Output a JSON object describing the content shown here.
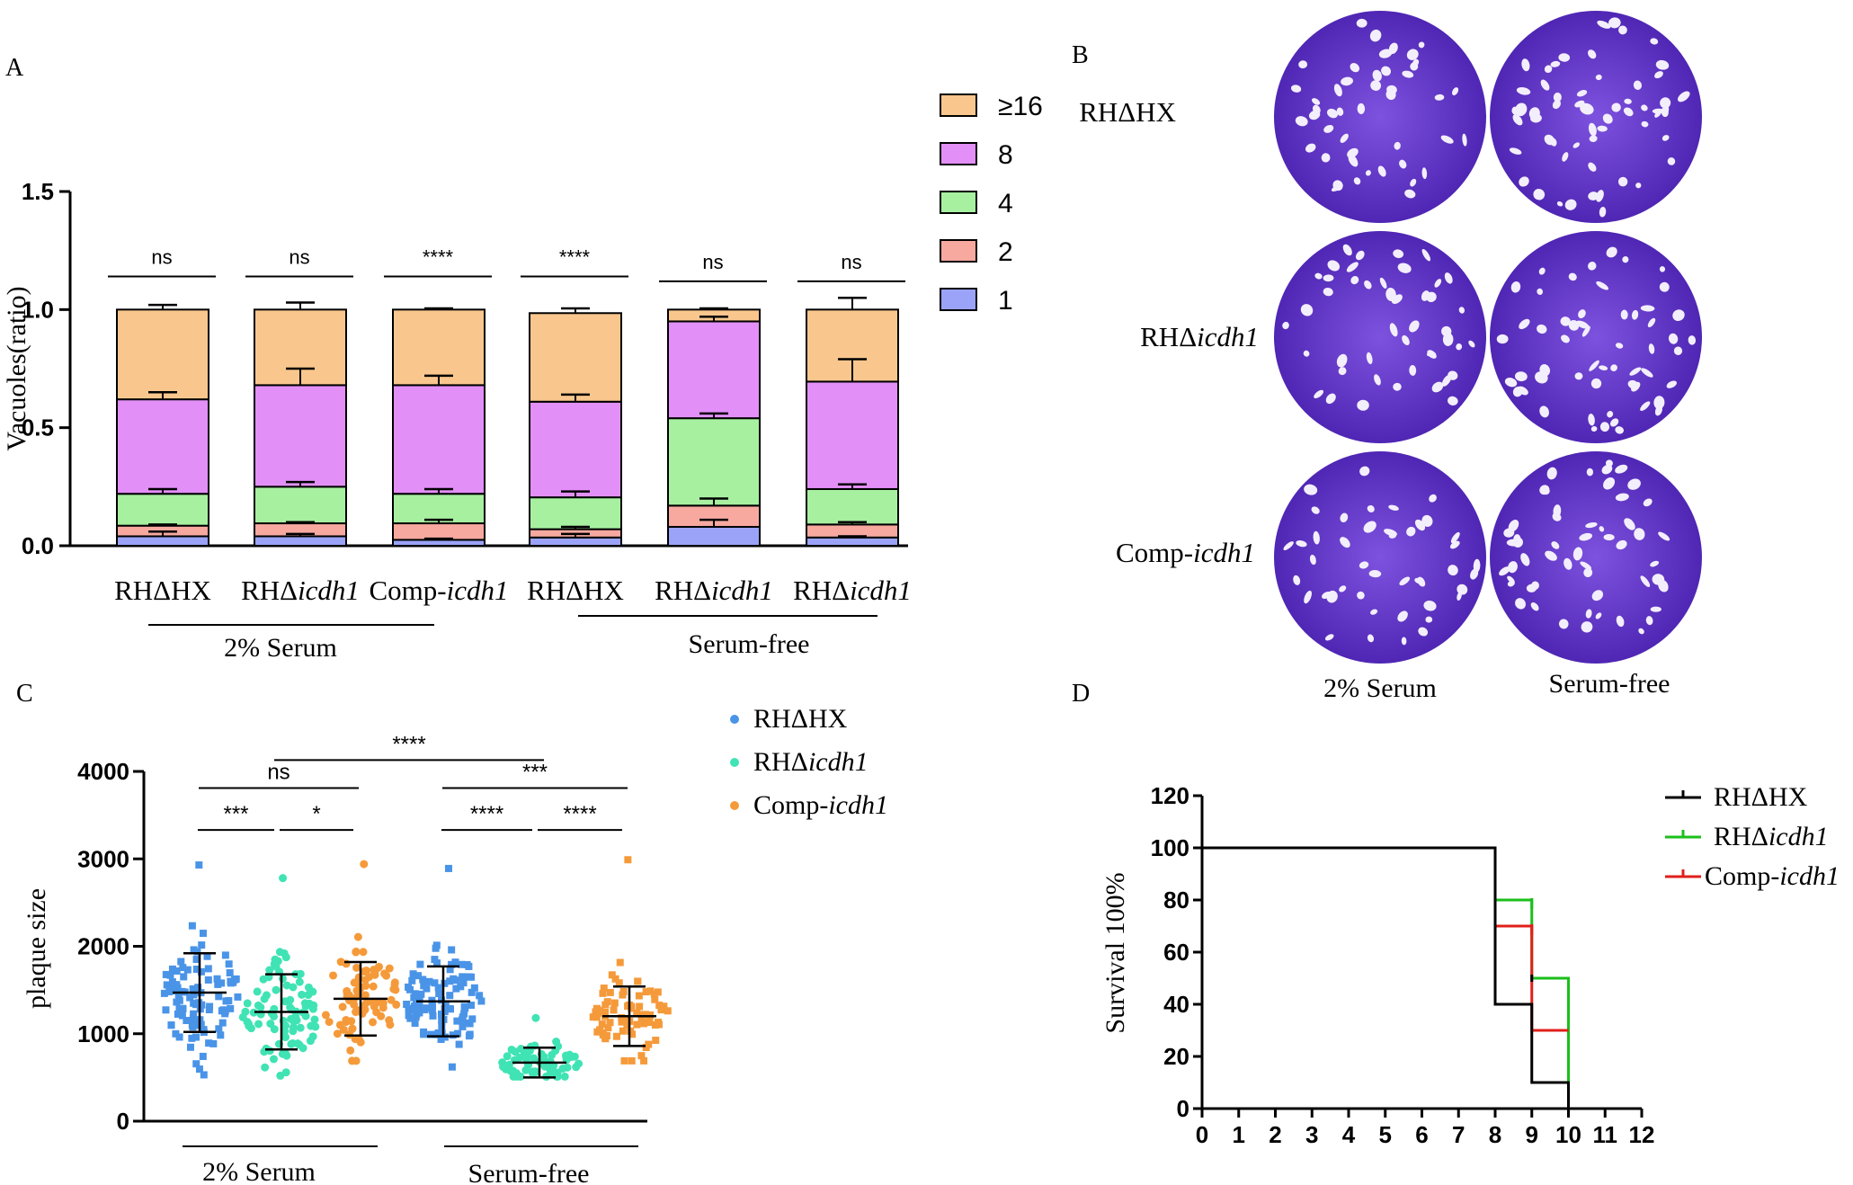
{
  "panel_letters": {
    "a": "A",
    "b": "B",
    "c": "C",
    "d": "D"
  },
  "colors": {
    "v16": "#f9c78e",
    "v8": "#e38ff8",
    "v4": "#a7f0a0",
    "v2": "#f7a9a0",
    "v1": "#9aa3f7",
    "rhhx": "#4a94e8",
    "rhicdh": "#40e3b4",
    "comp": "#f59a3a",
    "surv_hx": "#000000",
    "surv_icdh": "#1bbf1b",
    "surv_comp": "#e0201a",
    "plate": "#6a38d2",
    "plate_dark": "#4b22b0"
  },
  "panelB": {
    "row_labels": [
      {
        "prefix": "RHΔHX",
        "italic": ""
      },
      {
        "prefix": "RHΔ",
        "italic": "icdh1"
      },
      {
        "prefix": "Comp-",
        "italic": "icdh1"
      }
    ],
    "col_labels": [
      "2% Serum",
      "Serum-free"
    ]
  },
  "chart_data": [
    {
      "id": "A",
      "type": "bar",
      "stacked": true,
      "ylabel": "Vacuoles(ratio)",
      "ylim": [
        0,
        1.5
      ],
      "yticks": [
        "0.0",
        "0.5",
        "1.0",
        "1.5"
      ],
      "categories": [
        {
          "prefix": "RHΔHX",
          "italic": ""
        },
        {
          "prefix": "RHΔ",
          "italic": "icdh1"
        },
        {
          "prefix": "Comp-",
          "italic": "icdh1"
        },
        {
          "prefix": "RHΔHX",
          "italic": ""
        },
        {
          "prefix": "RHΔ",
          "italic": "icdh1"
        },
        {
          "prefix": "RHΔ",
          "italic": "icdh1"
        }
      ],
      "group_labels": [
        "2% Serum",
        "Serum-free"
      ],
      "legend": [
        "≥16",
        "8",
        "4",
        "2",
        "1"
      ],
      "series": [
        {
          "name": "1",
          "color_key": "v1",
          "values": [
            0.04,
            0.04,
            0.025,
            0.035,
            0.08,
            0.035
          ]
        },
        {
          "name": "2",
          "color_key": "v2",
          "values": [
            0.045,
            0.055,
            0.07,
            0.035,
            0.09,
            0.055
          ]
        },
        {
          "name": "4",
          "color_key": "v4",
          "values": [
            0.135,
            0.155,
            0.125,
            0.135,
            0.37,
            0.15
          ]
        },
        {
          "name": "8",
          "color_key": "v8",
          "values": [
            0.4,
            0.43,
            0.46,
            0.405,
            0.41,
            0.455
          ]
        },
        {
          "name": "≥16",
          "color_key": "v16",
          "values": [
            0.38,
            0.32,
            0.32,
            0.375,
            0.05,
            0.305
          ]
        }
      ],
      "error_bars": [
        [
          0.06,
          0.09,
          0.24,
          0.65,
          1.02
        ],
        [
          0.05,
          0.1,
          0.27,
          0.75,
          1.03
        ],
        [
          0.03,
          0.11,
          0.24,
          0.72,
          1.005
        ],
        [
          0.05,
          0.08,
          0.23,
          0.64,
          1.005
        ],
        [
          0.11,
          0.2,
          0.56,
          0.97,
          1.005
        ],
        [
          0.04,
          0.1,
          0.26,
          0.79,
          1.05
        ]
      ],
      "significance": [
        {
          "from": 0,
          "to": 0,
          "y": 1.14,
          "label": "ns"
        },
        {
          "from": 1,
          "to": 1,
          "y": 1.14,
          "label": "ns"
        },
        {
          "from": 2,
          "to": 2,
          "y": 1.14,
          "label": "****"
        },
        {
          "from": 3,
          "to": 3,
          "y": 1.14,
          "label": "****"
        },
        {
          "from": 4,
          "to": 4,
          "y": 1.12,
          "label": "ns"
        },
        {
          "from": 5,
          "to": 5,
          "y": 1.12,
          "label": "ns"
        }
      ]
    },
    {
      "id": "C",
      "type": "scatter",
      "ylabel": "plaque size",
      "ylim": [
        0,
        4000
      ],
      "yticks": [
        "0",
        "1000",
        "2000",
        "3000",
        "4000"
      ],
      "groups": [
        {
          "series": "RHΔHX",
          "color_key": "rhhx",
          "shape": "square",
          "mean": 1470,
          "sd": 450,
          "min": 530,
          "max": 2930,
          "n": 100
        },
        {
          "series": "RHΔicdh1",
          "color_key": "rhicdh",
          "shape": "circle",
          "mean": 1250,
          "sd": 430,
          "min": 520,
          "max": 2780,
          "n": 90
        },
        {
          "series": "Comp-icdh1",
          "color_key": "comp",
          "shape": "circle",
          "mean": 1400,
          "sd": 420,
          "min": 690,
          "max": 2940,
          "n": 80
        },
        {
          "series": "RHΔHX",
          "color_key": "rhhx",
          "shape": "square",
          "mean": 1370,
          "sd": 400,
          "min": 620,
          "max": 2890,
          "n": 100
        },
        {
          "series": "RHΔicdh1",
          "color_key": "rhicdh",
          "shape": "circle",
          "mean": 670,
          "sd": 170,
          "min": 510,
          "max": 1180,
          "n": 70
        },
        {
          "series": "Comp-icdh1",
          "color_key": "comp",
          "shape": "square",
          "mean": 1200,
          "sd": 340,
          "min": 690,
          "max": 2990,
          "n": 80
        }
      ],
      "group_labels": [
        "2% Serum",
        "Serum-free"
      ],
      "legend": [
        {
          "prefix": "RHΔHX",
          "italic": "",
          "color_key": "rhhx"
        },
        {
          "prefix": "RHΔ",
          "italic": "icdh1",
          "color_key": "rhicdh"
        },
        {
          "prefix": "Comp-",
          "italic": "icdh1",
          "color_key": "comp"
        }
      ],
      "significance": [
        {
          "from": 0,
          "to": 1,
          "y": 3330,
          "label": "***"
        },
        {
          "from": 1,
          "to": 2,
          "y": 3330,
          "label": "*"
        },
        {
          "from": 0,
          "to": 2,
          "y": 3810,
          "label": "ns"
        },
        {
          "from": 1,
          "to": 4,
          "y": 4130,
          "label": "****"
        },
        {
          "from": 3,
          "to": 4,
          "y": 3330,
          "label": "****"
        },
        {
          "from": 4,
          "to": 5,
          "y": 3330,
          "label": "****"
        },
        {
          "from": 3,
          "to": 5,
          "y": 3810,
          "label": "***"
        }
      ]
    },
    {
      "id": "D",
      "type": "line",
      "step": true,
      "ylabel": "Survival 100%",
      "xlim": [
        0,
        12
      ],
      "ylim": [
        0,
        120
      ],
      "xticks": [
        "0",
        "1",
        "2",
        "3",
        "4",
        "5",
        "6",
        "7",
        "8",
        "9",
        "10",
        "11",
        "12"
      ],
      "yticks": [
        "0",
        "20",
        "40",
        "60",
        "80",
        "100",
        "120"
      ],
      "series": [
        {
          "name": "RHΔHX",
          "prefix": "RHΔHX",
          "italic": "",
          "color_key": "surv_hx",
          "points": [
            [
              0,
              100
            ],
            [
              8,
              100
            ],
            [
              8,
              40
            ],
            [
              9,
              40
            ],
            [
              9,
              10
            ],
            [
              10,
              10
            ],
            [
              10,
              0
            ]
          ]
        },
        {
          "name": "RHΔicdh1",
          "prefix": "RHΔ",
          "italic": "icdh1",
          "color_key": "surv_icdh",
          "points": [
            [
              8,
              100
            ],
            [
              8,
              80
            ],
            [
              9,
              80
            ],
            [
              9,
              50
            ],
            [
              10,
              50
            ],
            [
              10,
              0
            ]
          ]
        },
        {
          "name": "Comp-icdh1",
          "prefix": "Comp-",
          "italic": "icdh1",
          "color_key": "surv_comp",
          "points": [
            [
              8,
              70
            ],
            [
              9,
              70
            ],
            [
              9,
              30
            ],
            [
              10,
              30
            ]
          ]
        }
      ]
    }
  ]
}
